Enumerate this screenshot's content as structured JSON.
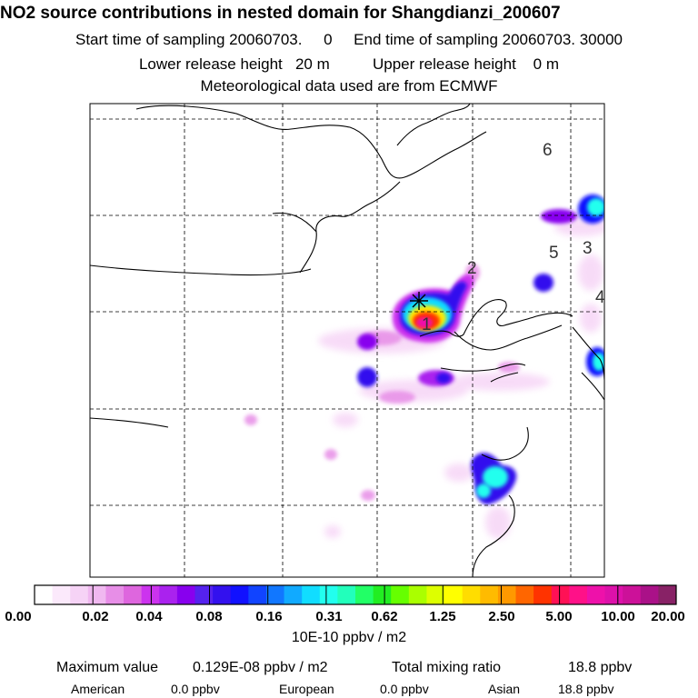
{
  "header": {
    "title": "NO2 source contributions in nested domain for Shangdianzi_200607",
    "sampling": "Start time of sampling 20060703.     0     End time of sampling 20060703. 30000",
    "release": "Lower release height   20 m          Upper release height    0 m",
    "met": "Meteorological data used are from ECMWF"
  },
  "map": {
    "receptor_labels": [
      "1",
      "2",
      "3",
      "4",
      "5",
      "6"
    ],
    "colors": {
      "coast": "#000000",
      "grid": "#000000",
      "receptor_marker": "#000000"
    }
  },
  "legend": {
    "ticks": [
      "0.00",
      "0.02",
      "0.04",
      "0.08",
      "0.16",
      "0.31",
      "0.62",
      "1.25",
      "2.50",
      "5.00",
      "10.00",
      "20.00"
    ],
    "unit": "10E-10 ppbv / m2",
    "colors": [
      "#ffffff",
      "#fbe9fb",
      "#f6d3f6",
      "#f0b8f0",
      "#e78ee7",
      "#de66de",
      "#cc33ee",
      "#aa22ee",
      "#8800ee",
      "#5522ee",
      "#3311ee",
      "#1111ff",
      "#1144ff",
      "#1177ff",
      "#11aaff",
      "#11ddff",
      "#22ffee",
      "#22ffbb",
      "#22ff66",
      "#22ee22",
      "#66ff00",
      "#aaff00",
      "#ddff00",
      "#ffff00",
      "#ffdd00",
      "#ffbb00",
      "#ff9900",
      "#ff6600",
      "#ff3300",
      "#ff1155",
      "#ff1188",
      "#ee11aa",
      "#dd11aa",
      "#cc1199",
      "#aa1188",
      "#882266"
    ]
  },
  "footer": {
    "max_label": "Maximum value",
    "max_value": "0.129E-08 ppbv / m2",
    "total_label": "Total mixing ratio",
    "total_value": "18.8 ppbv",
    "american_label": "American",
    "american_value": "0.0 ppbv",
    "european_label": "European",
    "european_value": "0.0 ppbv",
    "asian_label": "Asian",
    "asian_value": "18.8 ppbv"
  }
}
